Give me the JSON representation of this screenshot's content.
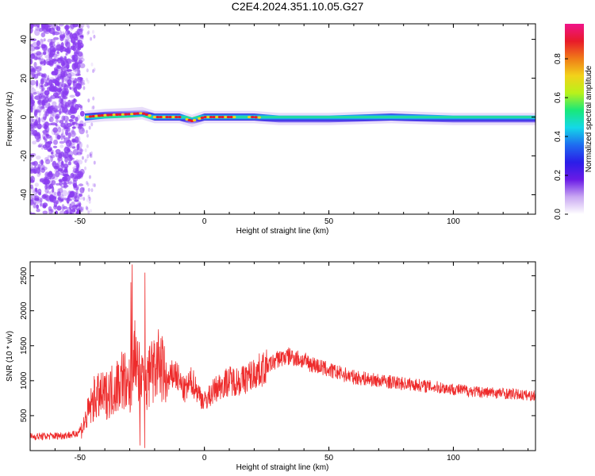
{
  "figure_title": "C2E4.2024.351.10.05.G27",
  "colors": {
    "snr_line": "#ee2b2b",
    "scatter": "#8a3cf0",
    "colormap": [
      "#ffffff",
      "#c9a8f2",
      "#6a1be6",
      "#2a1de8",
      "#1e6cf0",
      "#14d8e8",
      "#18e87a",
      "#b8f21a",
      "#f2d21a",
      "#f07a18",
      "#e81a2a",
      "#f0148a"
    ]
  },
  "chart_data": [
    {
      "type": "heatmap",
      "title": "",
      "xlabel": "Height of straight line (km)",
      "ylabel": "Frequency (Hz)",
      "xlim": [
        -70,
        133
      ],
      "ylim": [
        -50,
        48
      ],
      "x_ticks": [
        -50,
        0,
        50,
        100
      ],
      "y_ticks": [
        -40,
        -20,
        0,
        20,
        40
      ],
      "colorbar": {
        "label": "Normalized spectral amplitude",
        "range": [
          0,
          0.98
        ],
        "ticks": [
          0.0,
          0.2,
          0.4,
          0.6,
          0.8
        ]
      },
      "signal_band": {
        "x": [
          -48,
          -40,
          -30,
          -25,
          -20,
          -10,
          -5,
          0,
          10,
          20,
          30,
          50,
          75,
          100,
          120,
          133
        ],
        "center_frequency_hz": [
          0,
          1,
          1.5,
          2,
          0,
          0,
          -2,
          0,
          0,
          0,
          -1,
          -1,
          0,
          -1,
          -1,
          -1
        ]
      }
    },
    {
      "type": "line",
      "title": "",
      "xlabel": "Height of straight line (km)",
      "ylabel": "SNR (10 * v/v)",
      "xlim": [
        -70,
        133
      ],
      "ylim": [
        0,
        2700
      ],
      "x_ticks": [
        -50,
        0,
        50,
        100
      ],
      "y_ticks": [
        500,
        1000,
        1500,
        2000,
        2500
      ],
      "series": [
        {
          "x": [
            -70,
            -60,
            -52,
            -49,
            -46,
            -44,
            -40,
            -36,
            -33,
            -30,
            -28,
            -26,
            -24,
            -22,
            -18,
            -15,
            -12,
            -8,
            -5,
            -2,
            0,
            5,
            10,
            15,
            20,
            25,
            30,
            35,
            40,
            50,
            60,
            70,
            80,
            90,
            100,
            110,
            120,
            133
          ],
          "values": [
            200,
            210,
            230,
            320,
            600,
            760,
            780,
            900,
            1050,
            900,
            1400,
            1100,
            850,
            1050,
            1250,
            950,
            1120,
            850,
            1000,
            800,
            700,
            900,
            1000,
            1000,
            1100,
            1200,
            1320,
            1350,
            1280,
            1150,
            1050,
            1000,
            960,
            920,
            880,
            840,
            820,
            780
          ]
        }
      ]
    }
  ]
}
